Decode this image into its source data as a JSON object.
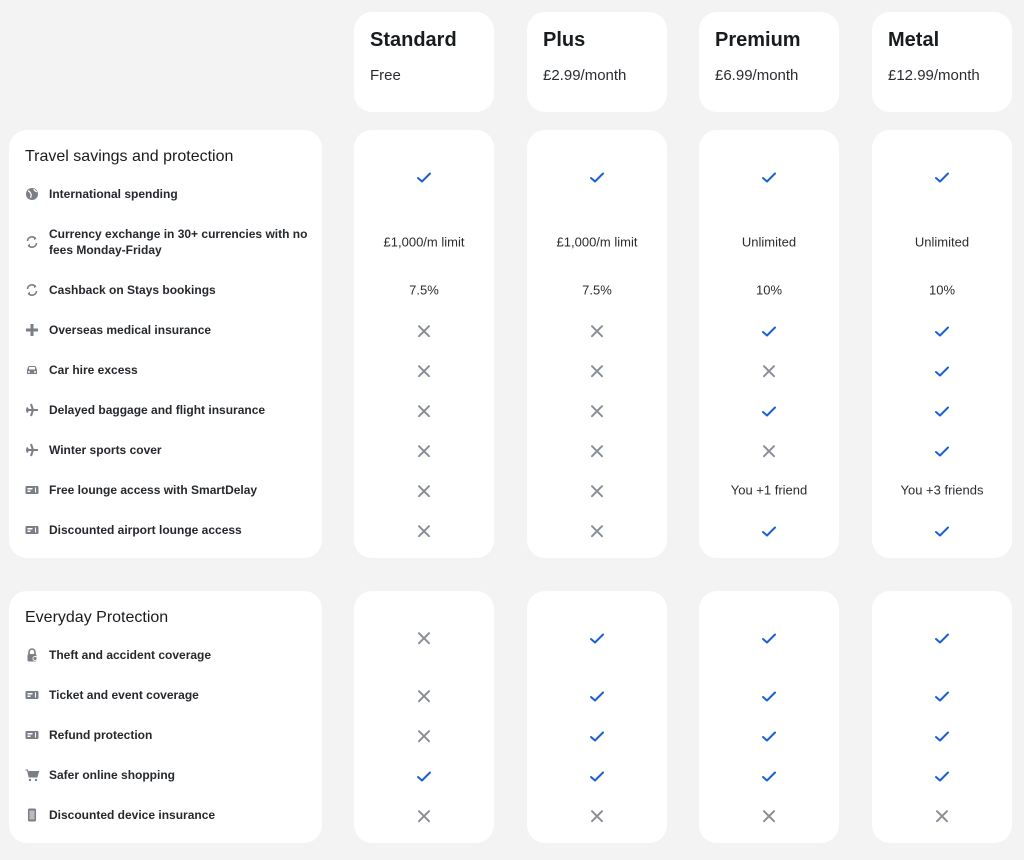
{
  "colors": {
    "check": "#1a5fd6",
    "cross": "#8a8f97",
    "icon": "#7a7f87",
    "background": "#f3f3f4"
  },
  "plans": [
    {
      "name": "Standard",
      "price": "Free"
    },
    {
      "name": "Plus",
      "price": "£2.99/month"
    },
    {
      "name": "Premium",
      "price": "£6.99/month"
    },
    {
      "name": "Metal",
      "price": "£12.99/month"
    }
  ],
  "sections": [
    {
      "title": "Travel savings and protection",
      "rows": [
        {
          "label": "International spending",
          "icon": "globe-icon",
          "values": [
            "check",
            "check",
            "check",
            "check"
          ]
        },
        {
          "label": "Currency exchange in 30+ currencies with no fees Monday-Friday",
          "icon": "exchange-icon",
          "values": [
            "£1,000/m limit",
            "£1,000/m limit",
            "Unlimited",
            "Unlimited"
          ]
        },
        {
          "label": "Cashback on Stays bookings",
          "icon": "exchange-icon",
          "values": [
            "7.5%",
            "7.5%",
            "10%",
            "10%"
          ]
        },
        {
          "label": "Overseas medical insurance",
          "icon": "plus-icon",
          "values": [
            "cross",
            "cross",
            "check",
            "check"
          ]
        },
        {
          "label": "Car hire excess",
          "icon": "car-icon",
          "values": [
            "cross",
            "cross",
            "cross",
            "check"
          ]
        },
        {
          "label": "Delayed baggage and flight insurance",
          "icon": "plane-icon",
          "values": [
            "cross",
            "cross",
            "check",
            "check"
          ]
        },
        {
          "label": "Winter sports cover",
          "icon": "plane-icon",
          "values": [
            "cross",
            "cross",
            "cross",
            "check"
          ]
        },
        {
          "label": "Free lounge access with SmartDelay",
          "icon": "ticket-icon",
          "values": [
            "cross",
            "cross",
            "You +1 friend",
            "You +3 friends"
          ]
        },
        {
          "label": "Discounted airport lounge access",
          "icon": "ticket-icon",
          "values": [
            "cross",
            "cross",
            "check",
            "check"
          ]
        }
      ]
    },
    {
      "title": "Everyday Protection",
      "rows": [
        {
          "label": "Theft and accident coverage",
          "icon": "lock-shield-icon",
          "values": [
            "cross",
            "check",
            "check",
            "check"
          ]
        },
        {
          "label": "Ticket and event coverage",
          "icon": "ticket-icon",
          "values": [
            "cross",
            "check",
            "check",
            "check"
          ]
        },
        {
          "label": "Refund protection",
          "icon": "ticket-icon",
          "values": [
            "cross",
            "check",
            "check",
            "check"
          ]
        },
        {
          "label": "Safer online shopping",
          "icon": "cart-icon",
          "values": [
            "check",
            "check",
            "check",
            "check"
          ]
        },
        {
          "label": "Discounted device insurance",
          "icon": "phone-icon",
          "values": [
            "cross",
            "cross",
            "cross",
            "cross"
          ]
        }
      ]
    }
  ]
}
